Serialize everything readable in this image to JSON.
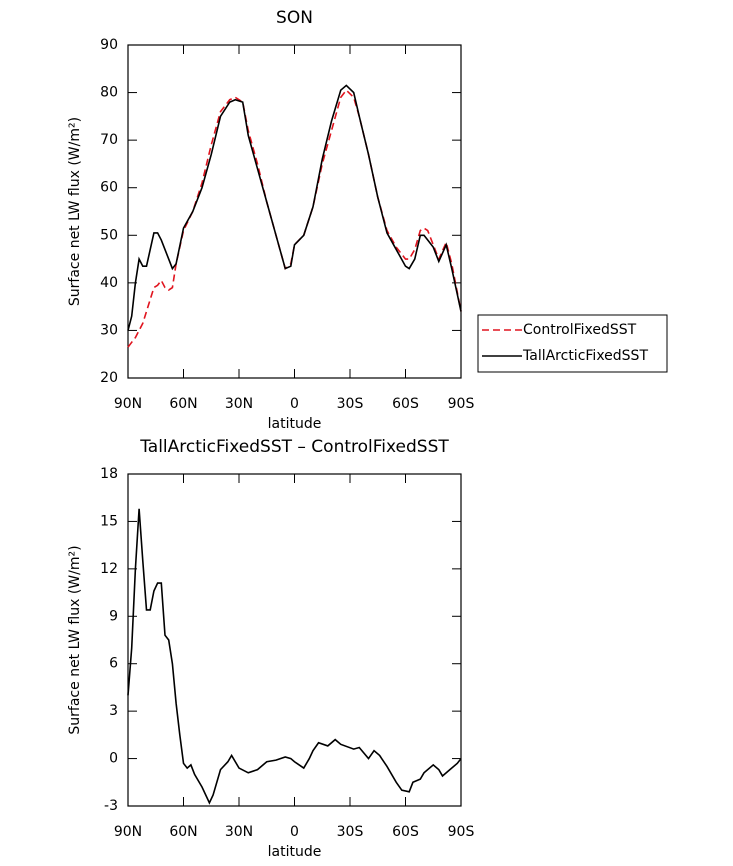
{
  "chart_data": [
    {
      "type": "line",
      "title": "SON",
      "xlabel": "latitude",
      "ylabel": "Surface net LW flux (W/m²)",
      "x": [
        90,
        88,
        86,
        84,
        82,
        80,
        78,
        76,
        74,
        72,
        70,
        68,
        66,
        64,
        60,
        55,
        50,
        45,
        40,
        35,
        32,
        28,
        25,
        20,
        15,
        10,
        5,
        2,
        0,
        -5,
        -10,
        -15,
        -20,
        -25,
        -28,
        -32,
        -35,
        -40,
        -45,
        -50,
        -55,
        -60,
        -62,
        -65,
        -68,
        -70,
        -72,
        -75,
        -78,
        -82,
        -85,
        -90
      ],
      "series": [
        {
          "name": "ControlFixedSST",
          "color": "#e0141e",
          "linestyle": "dashed",
          "values": [
            26.5,
            27.5,
            28.5,
            30,
            31.5,
            34,
            36.5,
            39,
            39.5,
            40.5,
            39,
            38.5,
            39,
            44,
            51,
            55,
            61,
            69,
            76,
            78.5,
            79,
            78,
            72,
            65,
            57,
            50,
            43,
            44,
            48,
            50,
            56,
            65,
            72,
            79,
            80.5,
            79,
            75,
            67,
            58,
            51,
            47.5,
            45,
            45,
            47,
            51,
            51.5,
            51,
            48,
            45,
            48.5,
            44,
            34
          ]
        },
        {
          "name": "TallArcticFixedSST",
          "color": "#000000",
          "linestyle": "solid",
          "values": [
            30,
            33,
            40,
            45,
            43.5,
            43.5,
            47,
            50.5,
            50.5,
            49,
            47,
            45,
            43,
            44,
            51.5,
            55,
            60,
            67,
            75,
            78,
            78.5,
            78,
            71,
            64,
            57,
            50,
            43,
            43.5,
            48,
            50,
            56,
            66,
            74,
            80.5,
            81.5,
            80,
            75,
            67,
            58,
            50.5,
            47,
            43.5,
            43,
            45,
            50,
            50,
            49,
            47.5,
            44.5,
            48,
            43,
            34
          ]
        }
      ],
      "xlim": [
        90,
        -90
      ],
      "xticks": [
        {
          "value": 90,
          "label": "90N"
        },
        {
          "value": 60,
          "label": "60N"
        },
        {
          "value": 30,
          "label": "30N"
        },
        0,
        {
          "value": -30,
          "label": "30S"
        },
        {
          "value": -60,
          "label": "60S"
        },
        {
          "value": -90,
          "label": "90S"
        }
      ],
      "ylim": [
        20,
        90
      ],
      "yticks": [
        20,
        30,
        40,
        50,
        60,
        70,
        80,
        90
      ],
      "legend": "outside-right"
    },
    {
      "type": "line",
      "title": "TallArcticFixedSST – ControlFixedSST",
      "xlabel": "latitude",
      "ylabel": "Surface net LW flux (W/m²)",
      "x": [
        90,
        88,
        86,
        84,
        82,
        80,
        78,
        76,
        74,
        72,
        70,
        68,
        66,
        64,
        62,
        60,
        58,
        56,
        54,
        50,
        46,
        44,
        40,
        36,
        34,
        30,
        25,
        20,
        15,
        10,
        5,
        2,
        0,
        -5,
        -8,
        -10,
        -13,
        -18,
        -22,
        -25,
        -32,
        -35,
        -40,
        -43,
        -46,
        -50,
        -55,
        -58,
        -62,
        -64,
        -68,
        -70,
        -75,
        -78,
        -80,
        -84,
        -88,
        -90
      ],
      "series": [
        {
          "name": "TallArcticFixedSST – ControlFixedSST",
          "color": "#000000",
          "linestyle": "solid",
          "values": [
            4,
            7,
            12,
            15.8,
            12.5,
            9.4,
            9.4,
            10.6,
            11.1,
            11.1,
            7.8,
            7.5,
            6,
            3.5,
            1.5,
            -0.3,
            -0.6,
            -0.4,
            -1,
            -1.8,
            -2.8,
            -2.3,
            -0.7,
            -0.2,
            0.2,
            -0.6,
            -0.9,
            -0.7,
            -0.2,
            -0.1,
            0.1,
            0,
            -0.2,
            -0.6,
            0,
            0.5,
            1,
            0.8,
            1.2,
            0.9,
            0.6,
            0.7,
            0,
            0.5,
            0.2,
            -0.5,
            -1.5,
            -2,
            -2.1,
            -1.5,
            -1.3,
            -0.9,
            -0.4,
            -0.7,
            -1.1,
            -0.7,
            -0.3,
            0
          ]
        }
      ],
      "xlim": [
        90,
        -90
      ],
      "xticks": [
        {
          "value": 90,
          "label": "90N"
        },
        {
          "value": 60,
          "label": "60N"
        },
        {
          "value": 30,
          "label": "30N"
        },
        0,
        {
          "value": -30,
          "label": "30S"
        },
        {
          "value": -60,
          "label": "60S"
        },
        {
          "value": -90,
          "label": "90S"
        }
      ],
      "ylim": [
        -3,
        18
      ],
      "yticks": [
        -3,
        0,
        3,
        6,
        9,
        12,
        15,
        18
      ]
    }
  ]
}
